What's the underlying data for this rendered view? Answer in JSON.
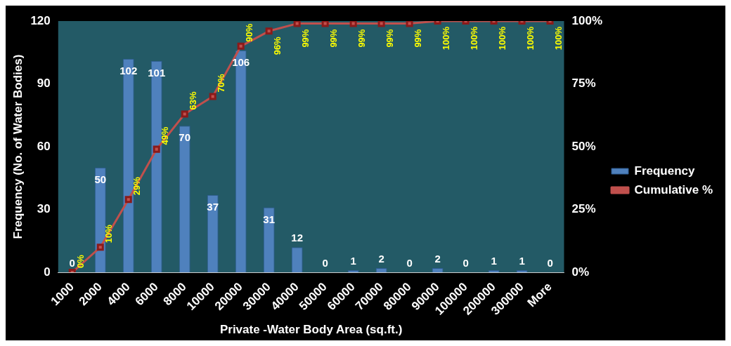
{
  "chart_data": {
    "type": "bar",
    "xlabel": "Private -Water Body Area (sq.ft.)",
    "ylabel": "Frequency (No. of Water Bodies)",
    "categories": [
      "1000",
      "2000",
      "4000",
      "6000",
      "8000",
      "10000",
      "20000",
      "30000",
      "40000",
      "50000",
      "60000",
      "70000",
      "80000",
      "90000",
      "100000",
      "200000",
      "300000",
      "More"
    ],
    "series": [
      {
        "name": "Frequency",
        "color": "#4f81bd",
        "values": [
          0,
          50,
          102,
          101,
          70,
          37,
          106,
          31,
          12,
          0,
          1,
          2,
          0,
          2,
          0,
          1,
          1,
          0
        ],
        "value_labels": [
          "0",
          "50",
          "102",
          "101",
          "70",
          "37",
          "106",
          "31",
          "12",
          "0",
          "1",
          "2",
          "0",
          "2",
          "0",
          "1",
          "1",
          "0"
        ]
      },
      {
        "name": "Cumulative %",
        "type": "line",
        "axis": "y2",
        "color": "#c0504d",
        "marker": "square",
        "values": [
          0,
          10,
          29,
          49,
          63,
          70,
          90,
          96,
          99,
          99,
          99,
          99,
          99,
          100,
          100,
          100,
          100,
          100
        ],
        "value_labels": [
          "0%",
          "10%",
          "29%",
          "49%",
          "63%",
          "70%",
          "90%",
          "96%",
          "99%",
          "99%",
          "99%",
          "99%",
          "99%",
          "100%",
          "100%",
          "100%",
          "100%",
          "100%"
        ]
      }
    ],
    "ylim": [
      0,
      120
    ],
    "yticks": [
      0,
      30,
      60,
      90,
      120
    ],
    "y2lim": [
      0,
      100
    ],
    "y2ticks": [
      {
        "value": 0,
        "label": "0%"
      },
      {
        "value": 25,
        "label": "25%"
      },
      {
        "value": 50,
        "label": "50%"
      },
      {
        "value": 75,
        "label": "75%"
      },
      {
        "value": 100,
        "label": "100%"
      }
    ],
    "grid": false,
    "legend": "right"
  }
}
